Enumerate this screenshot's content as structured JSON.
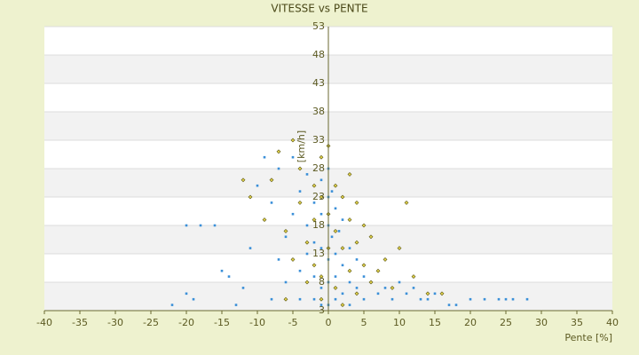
{
  "chart_data": {
    "type": "scatter",
    "title": "VITESSE vs PENTE",
    "x_label": "Pente [%]",
    "y_label": "[km/h]",
    "xlim": [
      -40,
      40
    ],
    "xticks": [
      -40,
      -35,
      -30,
      -25,
      -20,
      -15,
      -10,
      -5,
      0,
      5,
      10,
      15,
      20,
      25,
      30,
      35,
      40
    ],
    "ylim": [
      3,
      53
    ],
    "yticks": [
      3,
      8,
      13,
      18,
      23,
      28,
      33,
      38,
      43,
      48,
      53
    ],
    "grid": true,
    "series": [
      {
        "color": "#3a8fd8",
        "x": [
          -22,
          -20,
          -19,
          -18,
          -20,
          -16,
          -15,
          -14,
          -13,
          -12,
          -11,
          -10,
          -9,
          -8,
          -8,
          -7,
          -7,
          -6,
          -6,
          -5,
          -5,
          -4,
          -4,
          -4,
          -3,
          -3,
          -3,
          -2,
          -2,
          -2,
          -2,
          -1,
          -1,
          -1,
          -1,
          -1,
          0,
          0,
          0,
          0,
          0,
          0,
          0.5,
          0.5,
          1,
          1,
          1,
          1,
          1.5,
          2,
          2,
          2,
          3,
          3,
          3,
          4,
          4,
          5,
          5,
          6,
          7,
          8,
          9,
          10,
          11,
          12,
          13,
          14,
          15,
          17,
          18,
          20,
          22,
          24,
          25,
          26,
          28
        ],
        "values": [
          4,
          6,
          5,
          18,
          18,
          18,
          10,
          9,
          4,
          7,
          14,
          25,
          30,
          22,
          5,
          28,
          12,
          16,
          8,
          30,
          20,
          24,
          10,
          5,
          27,
          18,
          13,
          22,
          15,
          9,
          5,
          26,
          20,
          14,
          7,
          4,
          28,
          23,
          18,
          12,
          8,
          4,
          24,
          16,
          21,
          13,
          9,
          5,
          17,
          19,
          11,
          6,
          14,
          8,
          4,
          12,
          7,
          9,
          5,
          8,
          6,
          7,
          5,
          8,
          6,
          7,
          5,
          5,
          6,
          4,
          4,
          5,
          5,
          5,
          5,
          5,
          5
        ]
      },
      {
        "color": "#e2d24a",
        "x": [
          -12,
          -11,
          -9,
          -8,
          -7,
          -6,
          -5,
          -5,
          -4,
          -4,
          -3,
          -3,
          -2,
          -2,
          -2,
          -1,
          -1,
          -1,
          0,
          0,
          0,
          1,
          1,
          1,
          2,
          2,
          3,
          3,
          3,
          4,
          4,
          4,
          5,
          5,
          6,
          6,
          7,
          8,
          9,
          11,
          12,
          14,
          16,
          10,
          -6,
          -1,
          2
        ],
        "values": [
          26,
          23,
          19,
          26,
          31,
          17,
          12,
          33,
          22,
          28,
          15,
          8,
          25,
          19,
          11,
          30,
          23,
          9,
          32,
          20,
          14,
          25,
          17,
          7,
          23,
          14,
          27,
          19,
          10,
          22,
          15,
          6,
          18,
          11,
          16,
          8,
          10,
          12,
          7,
          22,
          9,
          6,
          6,
          14,
          5,
          5,
          4
        ]
      }
    ]
  }
}
